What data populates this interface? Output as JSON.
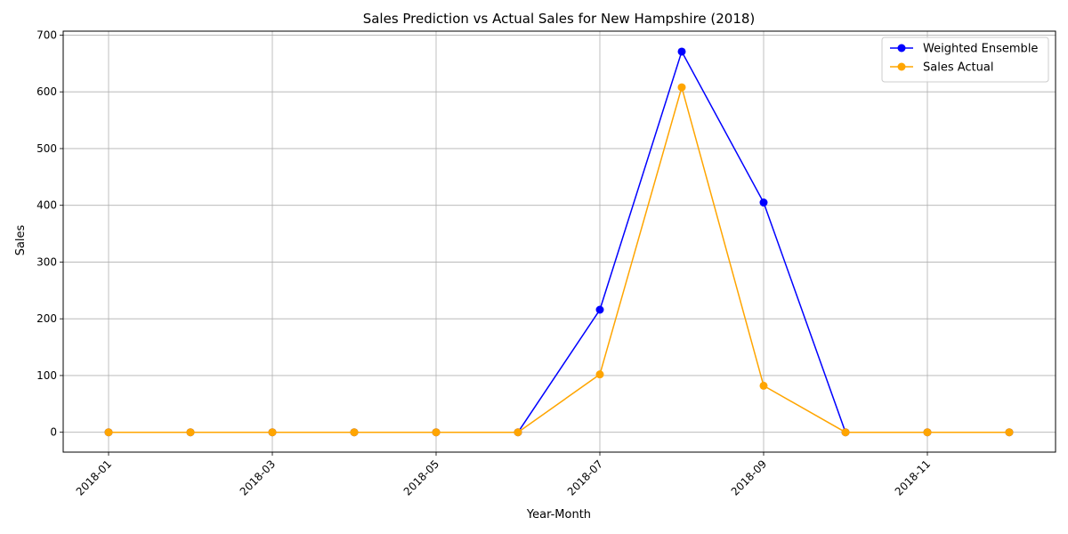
{
  "chart_data": {
    "type": "line",
    "title": "Sales Prediction vs Actual Sales for New Hampshire (2018)",
    "xlabel": "Year-Month",
    "ylabel": "Sales",
    "x": [
      "2018-01",
      "2018-02",
      "2018-03",
      "2018-04",
      "2018-05",
      "2018-06",
      "2018-07",
      "2018-08",
      "2018-09",
      "2018-10",
      "2018-11",
      "2018-12"
    ],
    "x_tick_labels": [
      "2018-01",
      "2018-03",
      "2018-05",
      "2018-07",
      "2018-09",
      "2018-11"
    ],
    "y_ticks": [
      0,
      100,
      200,
      300,
      400,
      500,
      600,
      700
    ],
    "ylim": [
      -35,
      707
    ],
    "grid": true,
    "legend_position": "top-right",
    "series": [
      {
        "name": "Weighted Ensemble",
        "color": "#0000ff",
        "values": [
          0,
          0,
          0,
          0,
          0,
          0,
          216,
          671,
          405,
          0,
          0,
          0
        ]
      },
      {
        "name": "Sales Actual",
        "color": "#ffa500",
        "values": [
          0,
          0,
          0,
          0,
          0,
          0,
          102,
          608,
          82,
          0,
          0,
          0
        ]
      }
    ]
  }
}
